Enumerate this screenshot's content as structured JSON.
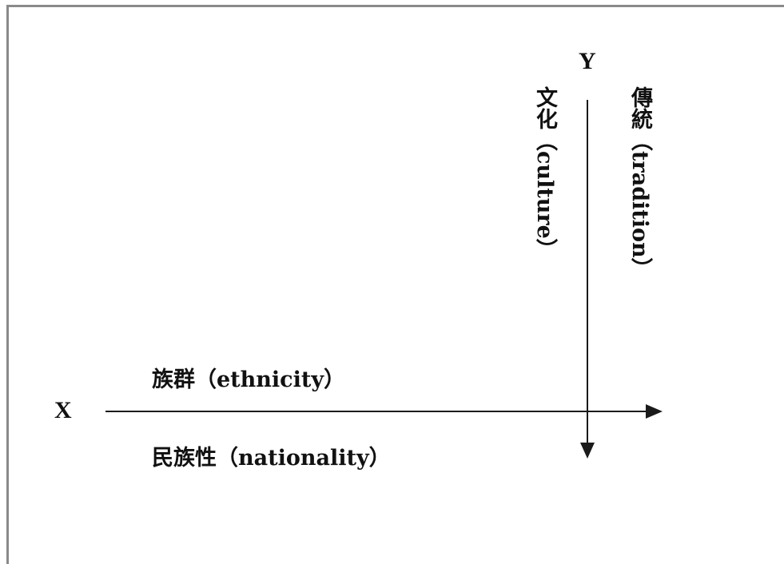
{
  "axes": {
    "x_label": "X",
    "y_label": "Y"
  },
  "labels": {
    "x_above": "族群（ethnicity）",
    "x_below": "民族性（nationality）",
    "y_left": "文化（culture）",
    "y_right": "傳統（tradition）"
  },
  "colors": {
    "line": "#1a1a1a",
    "frame": "#8a8a8a"
  }
}
